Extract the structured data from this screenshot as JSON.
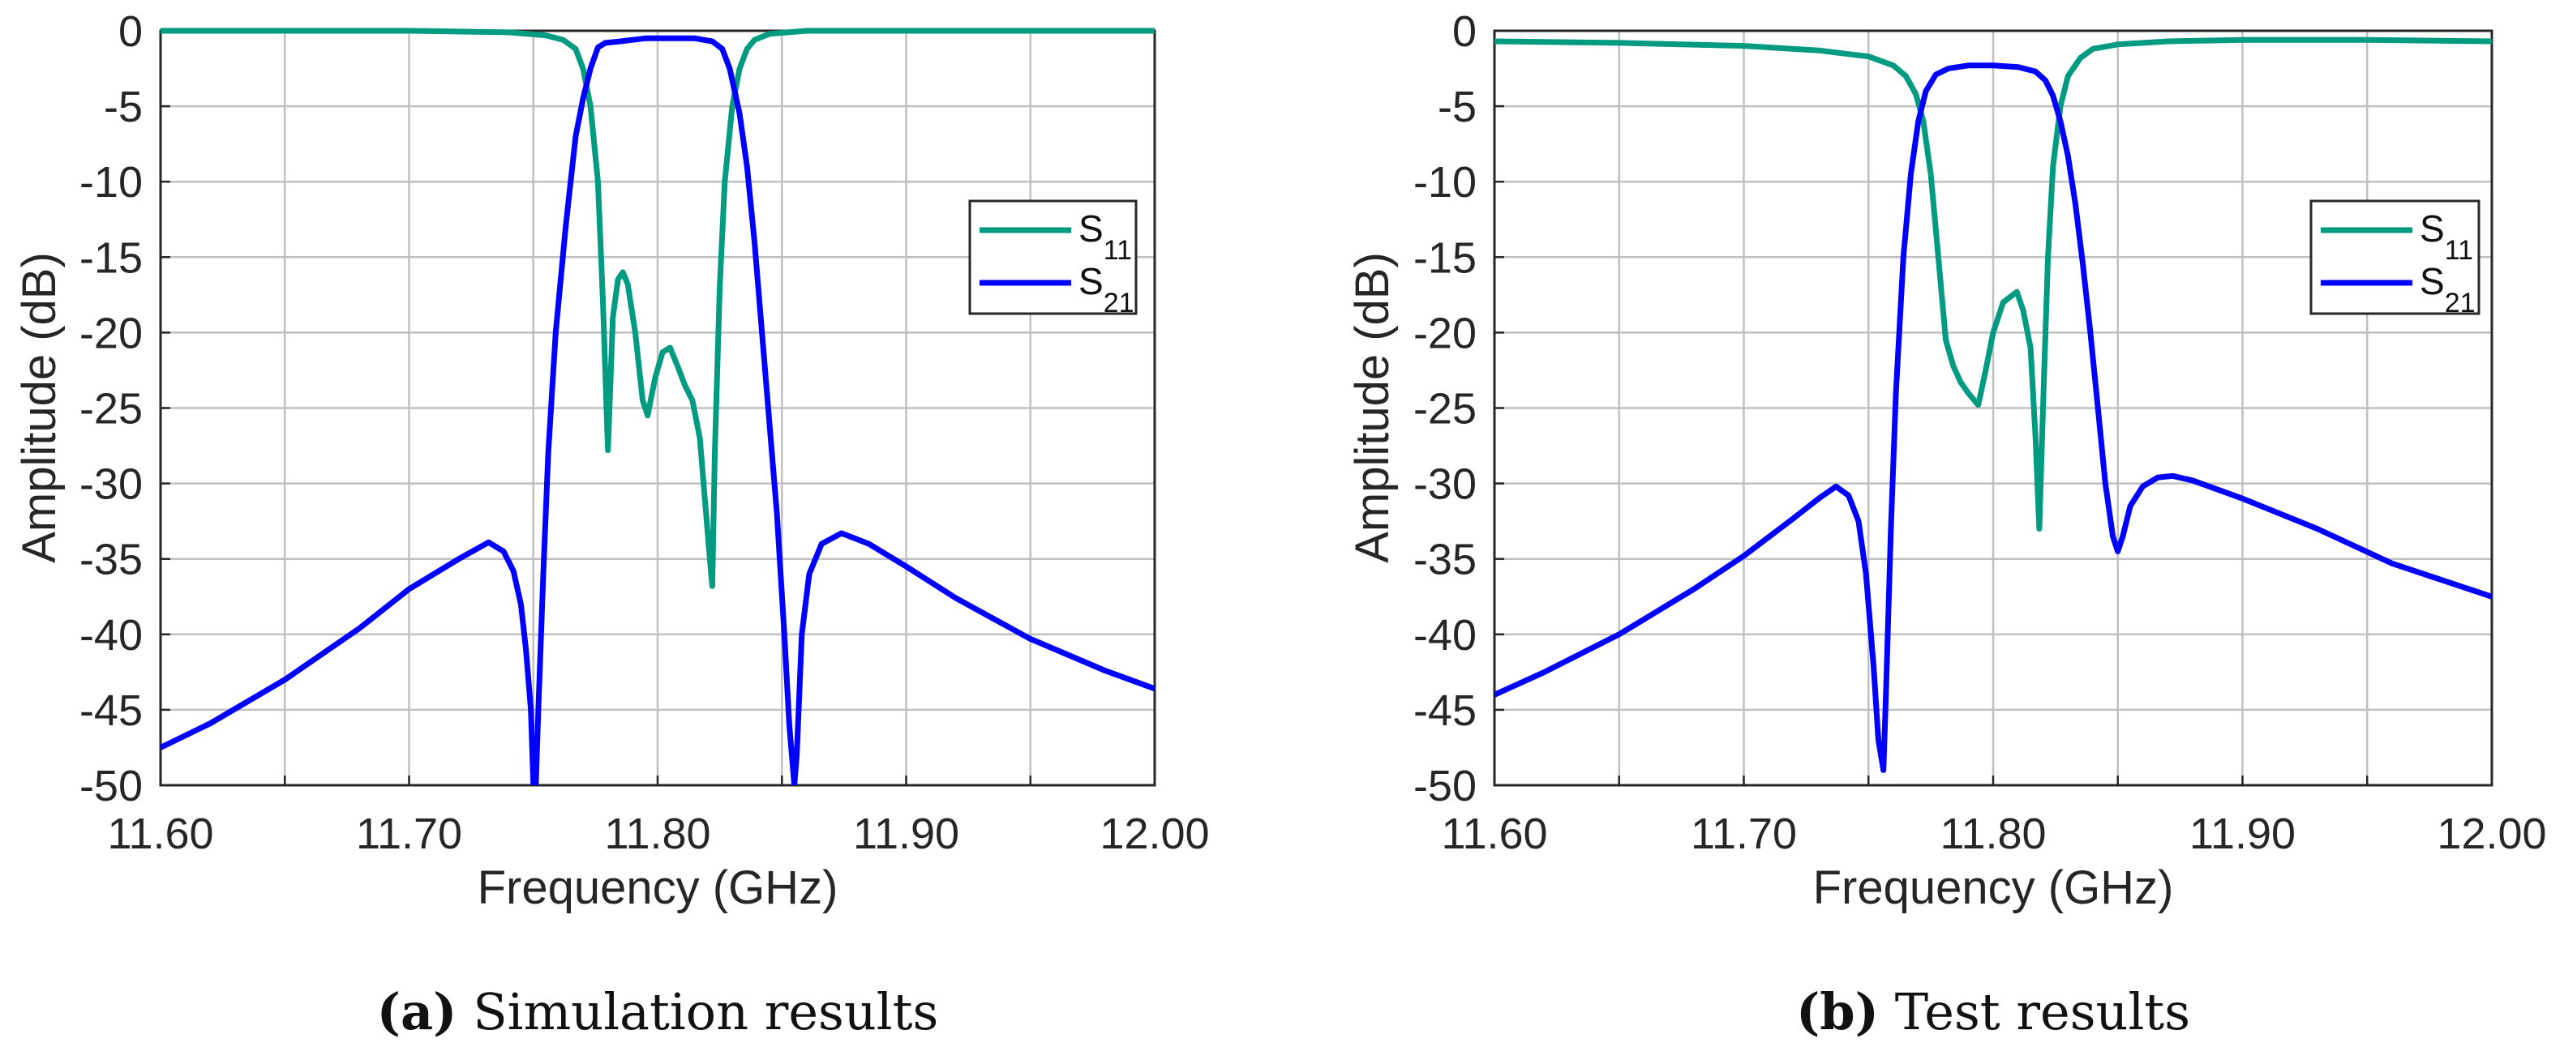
{
  "colors": {
    "s11": "#009B80",
    "s21": "#0000FF",
    "grid": "#C0C0C0",
    "axis": "#262626"
  },
  "chart_data": [
    {
      "type": "line",
      "caption_letter": "(a)",
      "caption_text": " Simulation results",
      "xlabel": "Frequency (GHz)",
      "ylabel": "Amplitude (dB)",
      "xlim": [
        11.6,
        12.0
      ],
      "ylim": [
        -50,
        0
      ],
      "xticks": [
        "11.60",
        "11.70",
        "11.80",
        "11.90",
        "12.00"
      ],
      "yticks": [
        "0",
        "-5",
        "-10",
        "-15",
        "-20",
        "-25",
        "-30",
        "-35",
        "-40",
        "-45",
        "-50"
      ],
      "grid": true,
      "legend": "right",
      "series": [
        {
          "name": "S11",
          "sub": "11",
          "x": [
            11.6,
            11.7,
            11.74,
            11.755,
            11.762,
            11.767,
            11.77,
            11.773,
            11.776,
            11.778,
            11.78,
            11.782,
            11.784,
            11.786,
            11.788,
            11.791,
            11.794,
            11.796,
            11.799,
            11.802,
            11.805,
            11.808,
            11.811,
            11.814,
            11.817,
            11.819,
            11.821,
            11.822,
            11.823,
            11.825,
            11.827,
            11.83,
            11.833,
            11.836,
            11.839,
            11.845,
            11.86,
            12.0
          ],
          "y": [
            0,
            0,
            -0.1,
            -0.3,
            -0.6,
            -1.2,
            -2.5,
            -5,
            -10,
            -18,
            -27.8,
            -19,
            -16.5,
            -16,
            -16.8,
            -20,
            -24.5,
            -25.5,
            -23,
            -21.3,
            -21,
            -22.2,
            -23.5,
            -24.5,
            -27,
            -31,
            -35,
            -36.8,
            -28,
            -17,
            -10,
            -5,
            -2.5,
            -1.2,
            -0.6,
            -0.2,
            0,
            0
          ]
        },
        {
          "name": "S21",
          "sub": "21",
          "x": [
            11.6,
            11.62,
            11.65,
            11.68,
            11.7,
            11.72,
            11.732,
            11.738,
            11.742,
            11.745,
            11.747,
            11.749,
            11.75,
            11.751,
            11.752,
            11.754,
            11.756,
            11.759,
            11.763,
            11.767,
            11.77,
            11.773,
            11.776,
            11.779,
            11.785,
            11.795,
            11.805,
            11.815,
            11.822,
            11.826,
            11.829,
            11.831,
            11.833,
            11.836,
            11.839,
            11.842,
            11.845,
            11.848,
            11.851,
            11.853,
            11.855,
            11.856,
            11.858,
            11.861,
            11.866,
            11.874,
            11.885,
            11.9,
            11.92,
            11.95,
            11.98,
            12.0
          ],
          "y": [
            -47.5,
            -45.9,
            -43,
            -39.6,
            -37,
            -35,
            -33.9,
            -34.5,
            -35.8,
            -38,
            -41,
            -45,
            -50,
            -50,
            -45,
            -36,
            -28,
            -20,
            -13,
            -7,
            -4.5,
            -2.5,
            -1.1,
            -0.8,
            -0.7,
            -0.5,
            -0.5,
            -0.5,
            -0.7,
            -1.2,
            -2.5,
            -4,
            -5.5,
            -9,
            -14,
            -20,
            -26,
            -32,
            -40,
            -46,
            -50,
            -48,
            -40,
            -36,
            -34,
            -33.3,
            -34,
            -35.5,
            -37.6,
            -40.3,
            -42.4,
            -43.6
          ]
        }
      ]
    },
    {
      "type": "line",
      "caption_letter": "(b)",
      "caption_text": " Test results",
      "xlabel": "Frequency (GHz)",
      "ylabel": "Amplitude (dB)",
      "xlim": [
        11.6,
        12.0
      ],
      "ylim": [
        -50,
        0
      ],
      "xticks": [
        "11.60",
        "11.70",
        "11.80",
        "11.90",
        "12.00"
      ],
      "yticks": [
        "0",
        "-5",
        "-10",
        "-15",
        "-20",
        "-25",
        "-30",
        "-35",
        "-40",
        "-45",
        "-50"
      ],
      "grid": true,
      "legend": "right",
      "series": [
        {
          "name": "S11",
          "sub": "11",
          "x": [
            11.6,
            11.65,
            11.7,
            11.73,
            11.75,
            11.76,
            11.765,
            11.769,
            11.772,
            11.775,
            11.778,
            11.781,
            11.784,
            11.787,
            11.79,
            11.794,
            11.797,
            11.8,
            11.804,
            11.8095,
            11.812,
            11.815,
            11.817,
            11.8185,
            11.82,
            11.822,
            11.824,
            11.827,
            11.83,
            11.835,
            11.84,
            11.85,
            11.87,
            11.9,
            11.95,
            12.0
          ],
          "y": [
            -0.7,
            -0.8,
            -1.0,
            -1.3,
            -1.7,
            -2.3,
            -3,
            -4.2,
            -6,
            -9.5,
            -15,
            -20.5,
            -22.2,
            -23.3,
            -24,
            -24.8,
            -22.5,
            -20,
            -18,
            -17.3,
            -18.5,
            -21,
            -27,
            -33,
            -25,
            -15,
            -9,
            -5,
            -3,
            -1.8,
            -1.2,
            -0.9,
            -0.7,
            -0.6,
            -0.6,
            -0.7
          ]
        },
        {
          "name": "S21",
          "sub": "21",
          "x": [
            11.6,
            11.62,
            11.65,
            11.68,
            11.7,
            11.72,
            11.73,
            11.737,
            11.742,
            11.746,
            11.749,
            11.752,
            11.754,
            11.756,
            11.757,
            11.759,
            11.761,
            11.764,
            11.767,
            11.77,
            11.773,
            11.777,
            11.782,
            11.79,
            11.8,
            11.81,
            11.817,
            11.821,
            11.824,
            11.827,
            11.83,
            11.833,
            11.836,
            11.839,
            11.842,
            11.845,
            11.848,
            11.85,
            11.852,
            11.855,
            11.86,
            11.866,
            11.872,
            11.88,
            11.9,
            11.93,
            11.96,
            12.0
          ],
          "y": [
            -44,
            -42.5,
            -40,
            -37,
            -34.8,
            -32.3,
            -31,
            -30.2,
            -30.8,
            -32.5,
            -36,
            -42,
            -47,
            -49,
            -44,
            -33,
            -24,
            -15,
            -9.5,
            -6,
            -4,
            -2.9,
            -2.5,
            -2.3,
            -2.3,
            -2.4,
            -2.7,
            -3.3,
            -4.3,
            -6,
            -8.3,
            -11.5,
            -15.5,
            -20,
            -25,
            -30,
            -33.5,
            -34.5,
            -33.5,
            -31.5,
            -30.2,
            -29.6,
            -29.5,
            -29.8,
            -31,
            -33,
            -35.3,
            -37.5
          ]
        }
      ]
    }
  ]
}
